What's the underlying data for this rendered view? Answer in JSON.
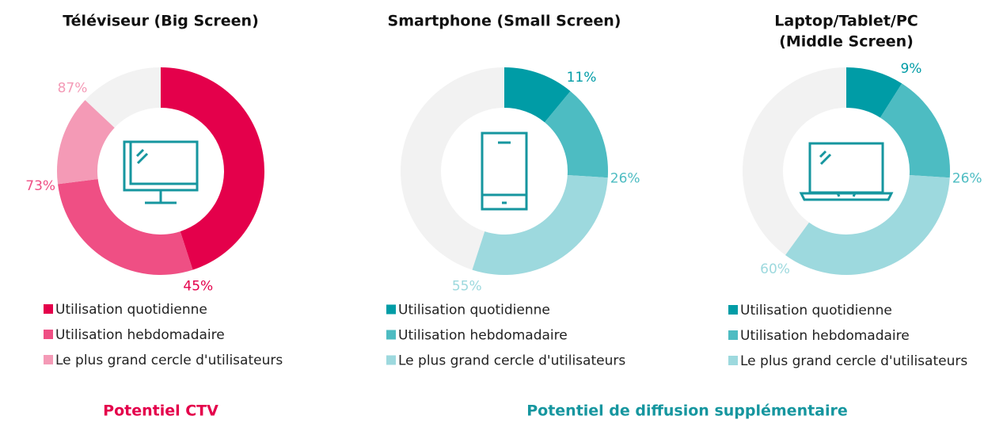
{
  "chart_data": [
    {
      "type": "donut",
      "title": [
        "Téléviseur (Big Screen)"
      ],
      "categories": [
        "Utilisation quotidienne",
        "Utilisation hebdomadaire",
        "Le plus grand cercle d'utilisateurs"
      ],
      "values": [
        45,
        73,
        87
      ],
      "value_labels": [
        "45%",
        "73%",
        "87%"
      ],
      "colors": [
        "#e4004b",
        "#ef4f84",
        "#f49ab6"
      ]
    },
    {
      "type": "donut",
      "title": [
        "Smartphone (Small Screen)"
      ],
      "categories": [
        "Utilisation quotidienne",
        "Utilisation hebdomadaire",
        "Le plus grand cercle d'utilisateurs"
      ],
      "values": [
        11,
        26,
        55
      ],
      "value_labels": [
        "11%",
        "26%",
        "55%"
      ],
      "colors": [
        "#009ca6",
        "#4dbcc2",
        "#9dd9de"
      ]
    },
    {
      "type": "donut",
      "title": [
        "Laptop/Tablet/PC",
        "(Middle Screen)"
      ],
      "categories": [
        "Utilisation quotidienne",
        "Utilisation hebdomadaire",
        "Le plus grand cercle d'utilisateurs"
      ],
      "values": [
        9,
        26,
        60
      ],
      "value_labels": [
        "9%",
        "26%",
        "60%"
      ],
      "colors": [
        "#009ca6",
        "#4dbcc2",
        "#9dd9de"
      ]
    }
  ],
  "footer": {
    "left": "Potentiel CTV",
    "right": "Potentiel de diffusion supplémentaire"
  }
}
